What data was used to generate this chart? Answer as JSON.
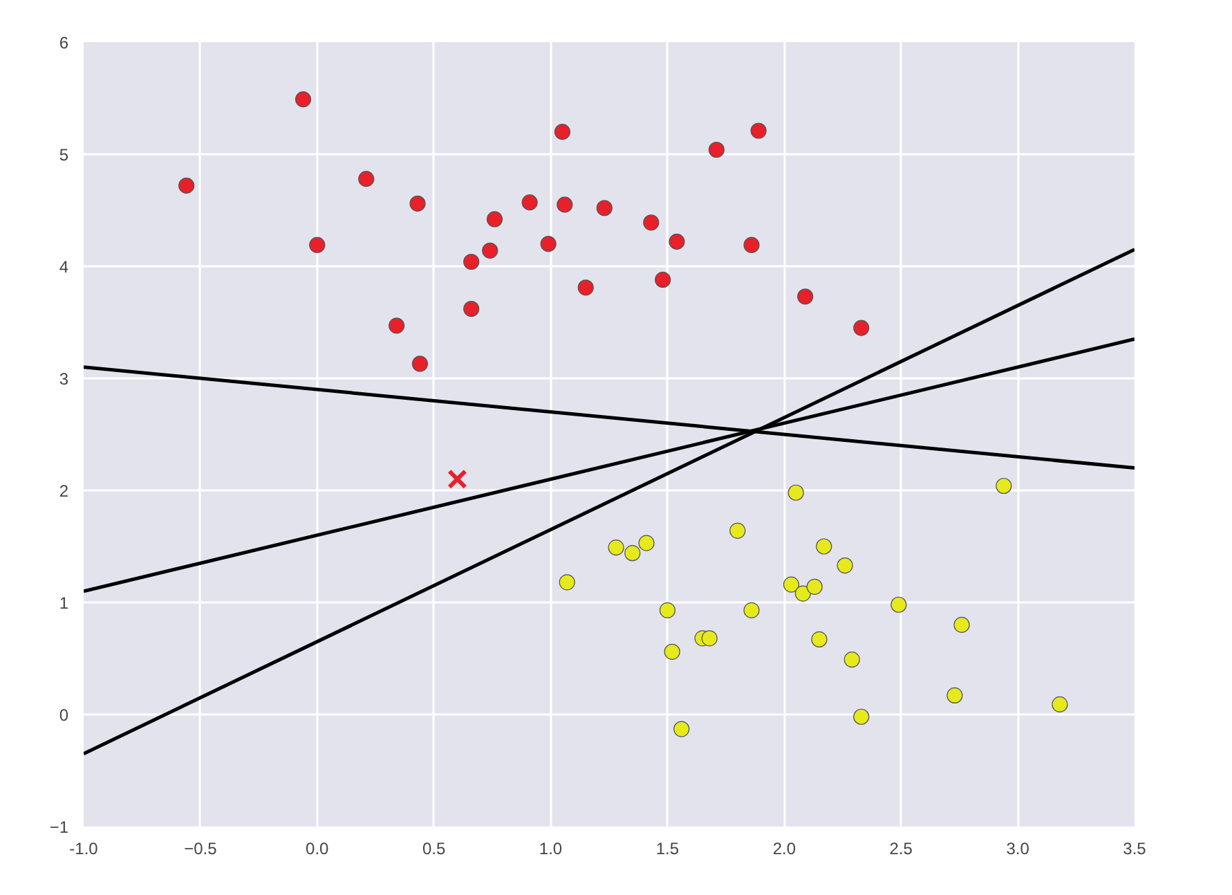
{
  "chart_data": {
    "type": "scatter",
    "xlim": [
      -1,
      3.5
    ],
    "ylim": [
      -1,
      6
    ],
    "xticks": [
      {
        "value": -1,
        "label": "-1.0"
      },
      -0.5,
      {
        "value": 0,
        "label": "0.0"
      },
      0.5,
      {
        "value": 1,
        "label": "1.0"
      },
      1.5,
      {
        "value": 2,
        "label": "2.0"
      },
      2.5,
      {
        "value": 3,
        "label": "3.0"
      },
      3.5
    ],
    "yticks": [
      -1,
      0,
      1,
      2,
      3,
      4,
      5,
      6
    ],
    "grid": true,
    "series": [
      {
        "marker": "circle",
        "color": "#e8202a",
        "x": [
          -0.56,
          -0.06,
          0.0,
          0.21,
          0.43,
          0.34,
          0.44,
          0.66,
          0.66,
          0.74,
          0.76,
          0.91,
          0.99,
          1.05,
          1.06,
          1.15,
          1.23,
          1.43,
          1.48,
          1.54,
          1.71,
          1.89,
          1.86,
          2.09,
          2.33
        ],
        "values": [
          4.72,
          5.49,
          4.19,
          4.78,
          4.56,
          3.47,
          3.13,
          4.04,
          3.62,
          4.14,
          4.42,
          4.57,
          4.2,
          5.2,
          4.55,
          3.81,
          4.52,
          4.39,
          3.88,
          4.22,
          5.04,
          5.21,
          4.19,
          3.73,
          3.45
        ]
      },
      {
        "marker": "circle",
        "color": "#e6ea1c",
        "x": [
          1.07,
          1.28,
          1.35,
          1.41,
          1.8,
          1.5,
          1.52,
          1.65,
          1.68,
          1.56,
          1.86,
          2.05,
          2.03,
          2.08,
          2.17,
          2.26,
          2.13,
          2.49,
          2.15,
          2.29,
          2.76,
          2.33,
          2.73,
          3.18,
          2.94
        ],
        "values": [
          1.18,
          1.49,
          1.44,
          1.53,
          1.64,
          0.93,
          0.56,
          0.68,
          0.68,
          -0.13,
          0.93,
          1.98,
          1.16,
          1.08,
          1.5,
          1.33,
          1.14,
          0.98,
          0.67,
          0.49,
          0.8,
          -0.02,
          0.17,
          0.09,
          2.04
        ]
      },
      {
        "marker": "cross",
        "color": "#e8202a",
        "x": [
          0.6
        ],
        "values": [
          2.1
        ]
      },
      {
        "type": "line",
        "color": "#000000",
        "x": [
          -1,
          3.5
        ],
        "values": [
          -0.35,
          4.15
        ]
      },
      {
        "type": "line",
        "color": "#000000",
        "x": [
          -1,
          3.5
        ],
        "values": [
          1.1,
          3.35
        ]
      },
      {
        "type": "line",
        "color": "#000000",
        "x": [
          -1,
          3.5
        ],
        "values": [
          3.1,
          2.2
        ]
      }
    ]
  }
}
